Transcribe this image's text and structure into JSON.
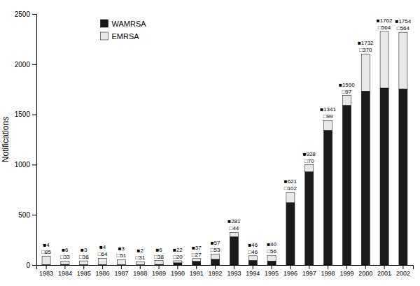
{
  "chart_data": {
    "type": "bar",
    "stacked": true,
    "categories": [
      "1983",
      "1984",
      "1985",
      "1986",
      "1987",
      "1988",
      "1989",
      "1990",
      "1991",
      "1992",
      "1993",
      "1994",
      "1995",
      "1996",
      "1997",
      "1998",
      "1999",
      "2000",
      "2001",
      "2002"
    ],
    "series": [
      {
        "name": "WAMRSA",
        "color": "#1a1a1a",
        "values": [
          4,
          6,
          3,
          4,
          3,
          2,
          6,
          22,
          37,
          57,
          281,
          46,
          40,
          621,
          928,
          1341,
          1590,
          1732,
          1762,
          1754
        ],
        "value_labels": [
          "■4",
          "■6",
          "■3",
          "■4",
          "■3",
          "■2",
          "■6",
          "■22",
          "■37",
          "■57",
          "■281",
          "■46",
          "■40",
          "■621",
          "■928",
          "■1341",
          "■1590",
          "■1732",
          "■1762",
          "■1754"
        ]
      },
      {
        "name": "EMRSA",
        "color": "#e8e8e8",
        "values": [
          85,
          33,
          38,
          64,
          51,
          31,
          38,
          20,
          27,
          53,
          44,
          46,
          56,
          102,
          70,
          99,
          97,
          370,
          564,
          564
        ],
        "value_labels": [
          "□85",
          "□33",
          "□38",
          "□64",
          "□51",
          "□31",
          "□38",
          "□20",
          "□27",
          "□53",
          "□44",
          "□46",
          "□56",
          "□102",
          "□70",
          "□99",
          "□97",
          "□370",
          "□564",
          "□564"
        ]
      }
    ],
    "ylabel": "Notifications",
    "ylim": [
      0,
      2500
    ],
    "yticks": [
      0,
      500,
      1000,
      1500,
      2000,
      2500
    ],
    "data_labels": true,
    "legend": "upper left"
  }
}
